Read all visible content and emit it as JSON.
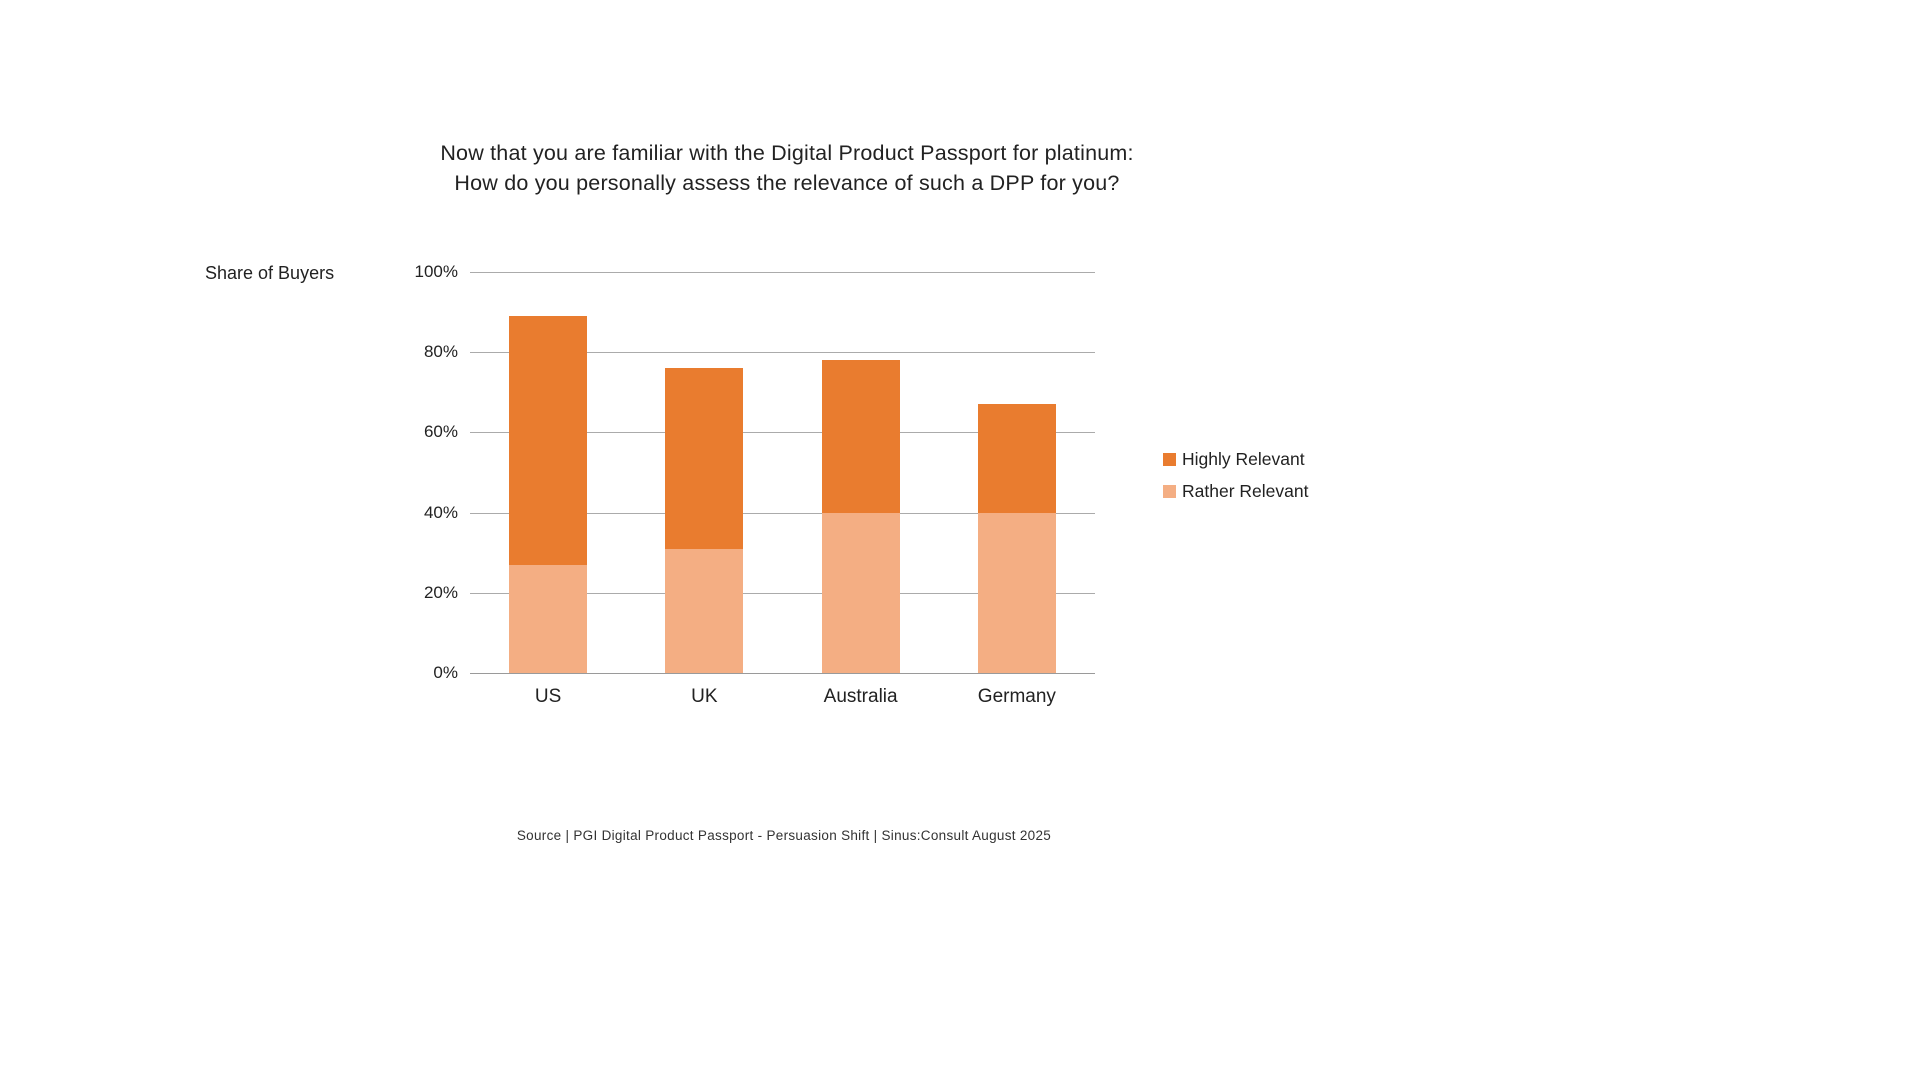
{
  "title": {
    "line1": "Now that you are familiar with the Digital Product Passport for platinum:",
    "line2": "How do you personally assess the relevance of such a DPP for you?"
  },
  "chart_data": {
    "type": "bar",
    "stacked": true,
    "title": "Now that you are familiar with the Digital Product Passport for platinum: How do you personally assess the relevance of such a DPP for you?",
    "ylabel": "Share of Buyers",
    "xlabel": "",
    "ylim": [
      0,
      100
    ],
    "yticks": [
      "0%",
      "20%",
      "40%",
      "60%",
      "80%",
      "100%"
    ],
    "grid": true,
    "legend_position": "right",
    "categories": [
      "US",
      "UK",
      "Australia",
      "Germany"
    ],
    "series": [
      {
        "name": "Rather Relevant",
        "color": "#F4AE83",
        "values": [
          27,
          31,
          40,
          40
        ]
      },
      {
        "name": "Highly Relevant",
        "color": "#E97C2F",
        "values": [
          62,
          45,
          38,
          27
        ]
      }
    ],
    "stack_totals": [
      89,
      76,
      78,
      67
    ]
  },
  "legend": {
    "items": [
      {
        "label": "Highly Relevant",
        "color": "#E97C2F"
      },
      {
        "label": "Rather Relevant",
        "color": "#F4AE83"
      }
    ]
  },
  "axis": {
    "y_title": "Share of Buyers"
  },
  "footer": {
    "source": "Source | PGI Digital Product Passport  - Persuasion Shift | Sinus:Consult August 2025"
  }
}
